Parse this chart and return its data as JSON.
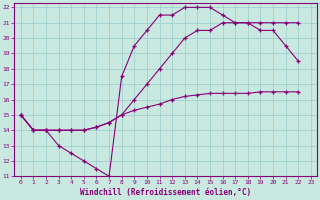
{
  "xlabel": "Windchill (Refroidissement éolien,°C)",
  "xlim": [
    -0.5,
    23.5
  ],
  "ylim": [
    11,
    22.3
  ],
  "xticks": [
    0,
    1,
    2,
    3,
    4,
    5,
    6,
    7,
    8,
    9,
    10,
    11,
    12,
    13,
    14,
    15,
    16,
    17,
    18,
    19,
    20,
    21,
    22,
    23
  ],
  "yticks": [
    11,
    12,
    13,
    14,
    15,
    16,
    17,
    18,
    19,
    20,
    21,
    22
  ],
  "bg_color": "#c8e8e0",
  "line_color": "#880077",
  "grid_color": "#99cccc",
  "line1_x": [
    0,
    1,
    2,
    3,
    4,
    5,
    6,
    7,
    8,
    9,
    10,
    11,
    12,
    13,
    14,
    15,
    16,
    17,
    18,
    19,
    20,
    21,
    22
  ],
  "line1_y": [
    15,
    14,
    14,
    13,
    12.5,
    12,
    11.5,
    11,
    17.5,
    19.5,
    20.5,
    21.5,
    21.5,
    22,
    22,
    22,
    21.5,
    21,
    21,
    21,
    21,
    21,
    21
  ],
  "line2_x": [
    0,
    1,
    2,
    3,
    4,
    5,
    6,
    7,
    8,
    9,
    10,
    11,
    12,
    13,
    14,
    15,
    16,
    17,
    18,
    19,
    20,
    21,
    22
  ],
  "line2_y": [
    15,
    14,
    14,
    14,
    14,
    14,
    14.2,
    14.5,
    15,
    16,
    17,
    18,
    19,
    20,
    20.5,
    20.5,
    21,
    21,
    21,
    20.5,
    20.5,
    19.5,
    18.5
  ],
  "line3_x": [
    0,
    1,
    2,
    3,
    4,
    5,
    6,
    7,
    8,
    9,
    10,
    11,
    12,
    13,
    14,
    15,
    16,
    17,
    18,
    19,
    20,
    21,
    22
  ],
  "line3_y": [
    15,
    14,
    14,
    14,
    14,
    14,
    14.2,
    14.5,
    15,
    15.3,
    15.5,
    15.7,
    16.0,
    16.2,
    16.3,
    16.4,
    16.4,
    16.4,
    16.4,
    16.5,
    16.5,
    16.5,
    16.5
  ]
}
